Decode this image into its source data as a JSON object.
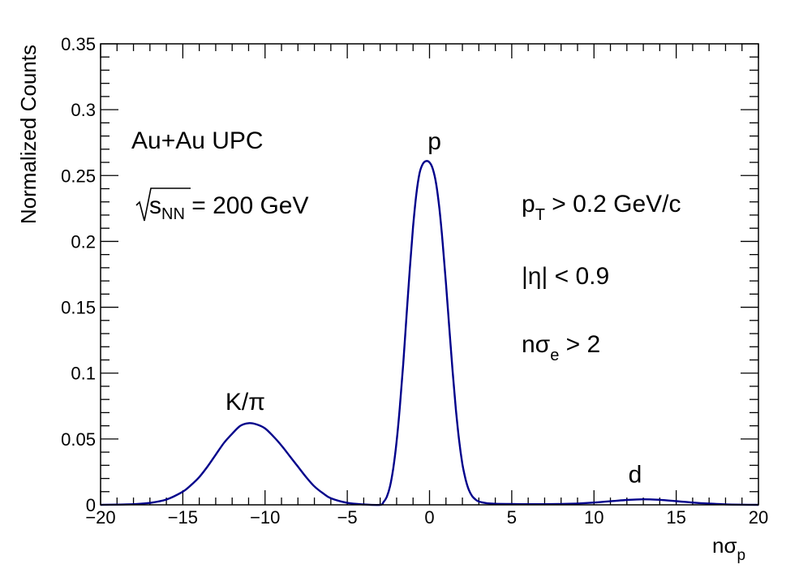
{
  "chart_data": {
    "type": "line",
    "title": "",
    "xlabel": "nσ",
    "xlabel_sub": "p",
    "ylabel": "Normalized Counts",
    "xlim": [
      -20,
      20
    ],
    "ylim": [
      0,
      0.35
    ],
    "x_ticks": [
      -20,
      -15,
      -10,
      -5,
      0,
      5,
      10,
      15,
      20
    ],
    "x_tick_labels": [
      "−20",
      "−15",
      "−10",
      "−5",
      "0",
      "5",
      "10",
      "15",
      "20"
    ],
    "y_ticks": [
      0,
      0.05,
      0.1,
      0.15,
      0.2,
      0.25,
      0.3,
      0.35
    ],
    "y_tick_labels": [
      "0",
      "0.05",
      "0.1",
      "0.15",
      "0.2",
      "0.25",
      "0.3",
      "0.35"
    ],
    "grid": false,
    "line_color": "#00008b",
    "series": [
      {
        "x": [
          -20,
          -19,
          -18,
          -17,
          -16,
          -15,
          -14.5,
          -14,
          -13.5,
          -13,
          -12.5,
          -12,
          -11.5,
          -11,
          -10.5,
          -10,
          -9.5,
          -9,
          -8.5,
          -8,
          -7.5,
          -7,
          -6.5,
          -6,
          -5,
          -4,
          -3,
          -2.8,
          -2.6,
          -2.4,
          -2.2,
          -2,
          -1.8,
          -1.6,
          -1.4,
          -1.2,
          -1,
          -0.8,
          -0.6,
          -0.4,
          -0.2,
          0,
          0.2,
          0.4,
          0.6,
          0.8,
          1,
          1.2,
          1.4,
          1.6,
          1.8,
          2,
          2.2,
          2.4,
          2.6,
          2.8,
          3,
          3.5,
          4,
          5,
          6,
          7,
          8,
          9,
          10,
          11,
          12,
          13,
          14,
          15,
          16,
          17,
          18,
          19,
          20
        ],
        "y": [
          0,
          0.0002,
          0.0005,
          0.0015,
          0.004,
          0.01,
          0.015,
          0.021,
          0.029,
          0.038,
          0.047,
          0.054,
          0.06,
          0.062,
          0.061,
          0.058,
          0.052,
          0.045,
          0.037,
          0.029,
          0.021,
          0.014,
          0.009,
          0.005,
          0.0015,
          0.0003,
          0,
          0.002,
          0.006,
          0.014,
          0.028,
          0.048,
          0.075,
          0.107,
          0.143,
          0.179,
          0.211,
          0.236,
          0.252,
          0.259,
          0.261,
          0.26,
          0.255,
          0.244,
          0.225,
          0.199,
          0.168,
          0.135,
          0.102,
          0.073,
          0.049,
          0.031,
          0.019,
          0.011,
          0.0065,
          0.004,
          0.0025,
          0.0012,
          0.0008,
          0.0006,
          0.0005,
          0.0005,
          0.0007,
          0.001,
          0.0017,
          0.0027,
          0.0037,
          0.0042,
          0.0038,
          0.0028,
          0.0017,
          0.0009,
          0.0004,
          0.0001,
          0
        ]
      }
    ],
    "annotations": {
      "system": "Au+Au UPC",
      "energy_s": "s",
      "energy_sub": "NN",
      "energy_rest": " = 200 GeV",
      "pt_p": "p",
      "pt_sub": "T",
      "pt_rest": " > 0.2 GeV/c",
      "eta": "|η| < 0.9",
      "nsig_prefix": "nσ",
      "nsig_sub": "e",
      "nsig_rest": " > 2"
    },
    "peak_labels": [
      {
        "text": "K/π",
        "x": -11.2,
        "y": 0.072
      },
      {
        "text": "p",
        "x": 0.3,
        "y": 0.27
      },
      {
        "text": "d",
        "x": 12.5,
        "y": 0.017
      }
    ]
  }
}
